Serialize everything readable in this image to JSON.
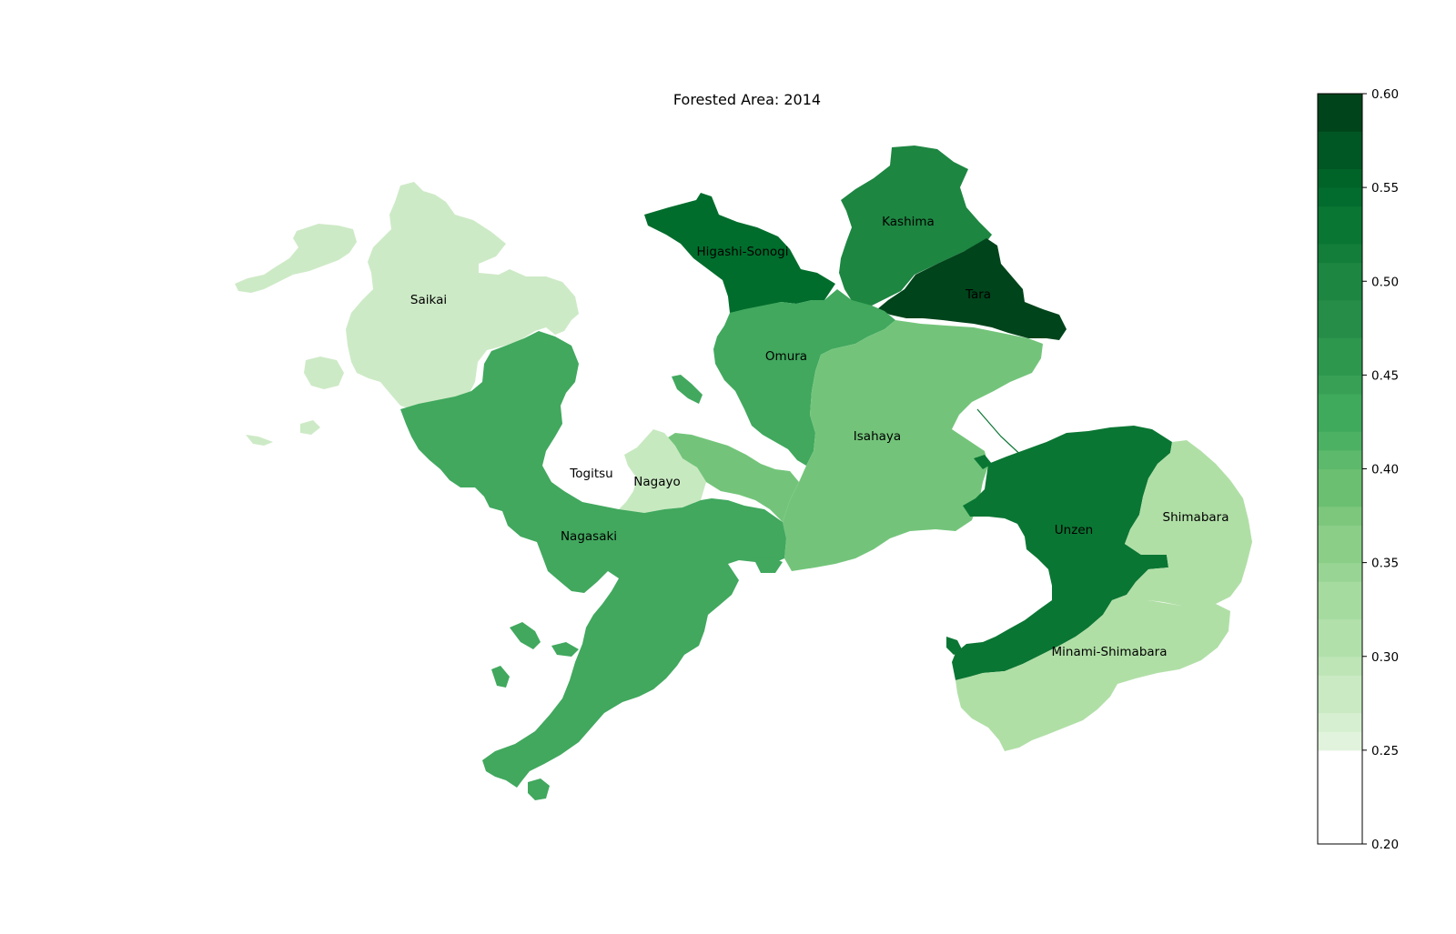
{
  "title": "Forested Area: 2014",
  "colorbar": {
    "min": 0.2,
    "max": 0.6,
    "ticks": [
      "0.60",
      "0.55",
      "0.50",
      "0.45",
      "0.40",
      "0.35",
      "0.30",
      "0.25",
      "0.20"
    ],
    "bands": [
      {
        "from": 0.2,
        "to": 0.25,
        "color": "#ffffff"
      },
      {
        "from": 0.25,
        "to": 0.26,
        "color": "#e1f3dc"
      },
      {
        "from": 0.26,
        "to": 0.27,
        "color": "#d6efd0"
      },
      {
        "from": 0.27,
        "to": 0.29,
        "color": "#c9eac2"
      },
      {
        "from": 0.29,
        "to": 0.3,
        "color": "#bde5b6"
      },
      {
        "from": 0.3,
        "to": 0.32,
        "color": "#b2e0ab"
      },
      {
        "from": 0.32,
        "to": 0.34,
        "color": "#a6dba0"
      },
      {
        "from": 0.34,
        "to": 0.35,
        "color": "#98d594"
      },
      {
        "from": 0.35,
        "to": 0.37,
        "color": "#8ace88"
      },
      {
        "from": 0.37,
        "to": 0.38,
        "color": "#7cc77c"
      },
      {
        "from": 0.38,
        "to": 0.4,
        "color": "#6bbf70"
      },
      {
        "from": 0.4,
        "to": 0.41,
        "color": "#5db96b"
      },
      {
        "from": 0.41,
        "to": 0.42,
        "color": "#4db163"
      },
      {
        "from": 0.42,
        "to": 0.44,
        "color": "#3fa95c"
      },
      {
        "from": 0.44,
        "to": 0.45,
        "color": "#37a055"
      },
      {
        "from": 0.45,
        "to": 0.47,
        "color": "#2e974e"
      },
      {
        "from": 0.47,
        "to": 0.49,
        "color": "#258d47"
      },
      {
        "from": 0.49,
        "to": 0.51,
        "color": "#1d8641"
      },
      {
        "from": 0.51,
        "to": 0.52,
        "color": "#137e3a"
      },
      {
        "from": 0.52,
        "to": 0.54,
        "color": "#0a7633"
      },
      {
        "from": 0.54,
        "to": 0.55,
        "color": "#026c2e"
      },
      {
        "from": 0.55,
        "to": 0.56,
        "color": "#006428"
      },
      {
        "from": 0.56,
        "to": 0.58,
        "color": "#005723"
      },
      {
        "from": 0.58,
        "to": 0.6,
        "color": "#00441b"
      }
    ]
  },
  "regions": [
    {
      "name": "Saikai",
      "value": 0.28,
      "color": "#cdeac6"
    },
    {
      "name": "Higashi-Sonogi",
      "value": 0.55,
      "color": "#006d2c"
    },
    {
      "name": "Kashima",
      "value": 0.5,
      "color": "#1d8641"
    },
    {
      "name": "Tara",
      "value": 0.6,
      "color": "#00441b"
    },
    {
      "name": "Omura",
      "value": 0.44,
      "color": "#41a85e"
    },
    {
      "name": "Isahaya",
      "value": 0.39,
      "color": "#73c47a"
    },
    {
      "name": "Togitsu",
      "value": 0.2,
      "color": "#ffffff"
    },
    {
      "name": "Nagayo",
      "value": 0.29,
      "color": "#c7e9c0"
    },
    {
      "name": "Nagasaki",
      "value": 0.45,
      "color": "#41a85e"
    },
    {
      "name": "Unzen",
      "value": 0.53,
      "color": "#0a7633"
    },
    {
      "name": "Shimabara",
      "value": 0.31,
      "color": "#b0dfa6"
    },
    {
      "name": "Minami-Shimabara",
      "value": 0.31,
      "color": "#b0dfa6"
    }
  ],
  "labels": {
    "saikai": "Saikai",
    "higashi_sonogi": "Higashi-Sonogi",
    "kashima": "Kashima",
    "tara": "Tara",
    "omura": "Omura",
    "isahaya": "Isahaya",
    "togitsu": "Togitsu",
    "nagayo": "Nagayo",
    "nagasaki": "Nagasaki",
    "unzen": "Unzen",
    "shimabara": "Shimabara",
    "minami_shimabara": "Minami-Shimabara"
  }
}
